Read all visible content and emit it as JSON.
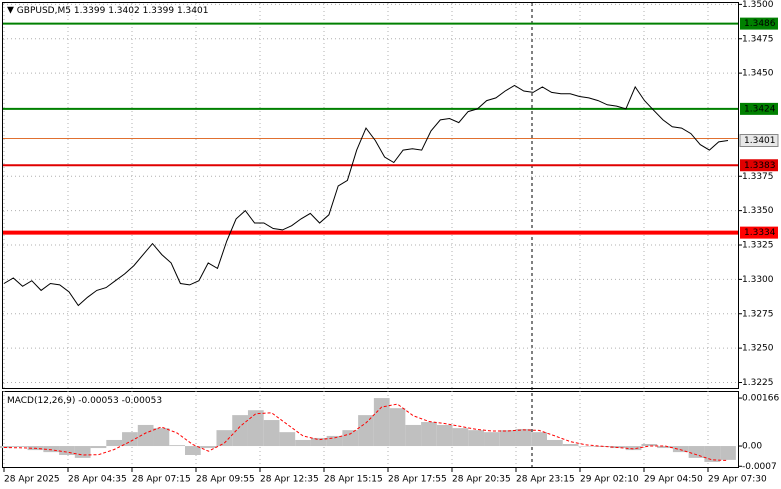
{
  "chart_data": {
    "type": "line",
    "title": "GBPUSD,M5",
    "ohlc": [
      1.3399,
      1.3402,
      1.3399,
      1.3401
    ],
    "color": "#000000",
    "values": [
      1.3297,
      1.3301,
      1.3295,
      1.3299,
      1.3292,
      1.3297,
      1.3296,
      1.3291,
      1.3281,
      1.3287,
      1.3292,
      1.3294,
      1.3299,
      1.3304,
      1.331,
      1.3318,
      1.3326,
      1.3318,
      1.3312,
      1.3297,
      1.3296,
      1.3299,
      1.3312,
      1.3308,
      1.3328,
      1.3344,
      1.335,
      1.3341,
      1.3341,
      1.3337,
      1.3336,
      1.3339,
      1.3344,
      1.3348,
      1.3341,
      1.3347,
      1.3368,
      1.3372,
      1.3394,
      1.341,
      1.3401,
      1.3389,
      1.3385,
      1.3394,
      1.3395,
      1.3394,
      1.3408,
      1.3416,
      1.3417,
      1.3414,
      1.3422,
      1.3424,
      1.343,
      1.3432,
      1.3437,
      1.3441,
      1.3437,
      1.3436,
      1.344,
      1.3436,
      1.3435,
      1.3435,
      1.3433,
      1.3432,
      1.343,
      1.3427,
      1.3426,
      1.3424,
      1.344,
      1.343,
      1.3423,
      1.3416,
      1.3411,
      1.341,
      1.3406,
      1.3398,
      1.3394,
      1.34,
      1.3401
    ],
    "ylim": [
      1.3221,
      1.3501
    ],
    "yticks": [
      {
        "value": 1.35,
        "label": "1.3500"
      },
      1.3475,
      {
        "value": 1.345,
        "label": "1.3450"
      },
      1.3375,
      {
        "value": 1.335,
        "label": "1.3350"
      },
      1.3325,
      {
        "value": 1.33,
        "label": "1.3300"
      },
      1.3275,
      {
        "value": 1.325,
        "label": "1.3250"
      },
      1.3225
    ],
    "grid": true,
    "levels": [
      {
        "value": 1.3486,
        "color": "#008000",
        "width": 2
      },
      {
        "value": 1.3424,
        "color": "#008000",
        "width": 2
      },
      {
        "value": 1.3383,
        "color": "#e00000",
        "width": 2
      },
      {
        "value": 1.3334,
        "color": "#ff0000",
        "width": 4
      }
    ],
    "last_price": 1.3401,
    "last_price_color": "#e07030",
    "x_labels": [
      "28 Apr 2025",
      "28 Apr 04:35",
      "28 Apr 07:15",
      "28 Apr 09:55",
      "28 Apr 12:35",
      "28 Apr 15:15",
      "28 Apr 17:55",
      "28 Apr 20:35",
      "28 Apr 23:15",
      "29 Apr 02:10",
      "29 Apr 04:50",
      "29 Apr 07:30"
    ],
    "macd": {
      "name": "MACD(12,26,9)",
      "current": [
        -0.00053,
        -0.00053
      ],
      "ylim": [
        -0.00076,
        0.00187
      ],
      "yticks": [
        0.00166,
        {
          "value": 0,
          "label": "0.00"
        },
        -0.0007
      ],
      "histogram_color": "#c0c0c0",
      "signal_color": "#ff0000",
      "histogram": [
        -7e-05,
        -3e-05,
        -0.00014,
        -0.00021,
        -0.00031,
        -0.00041,
        -7e-05,
        0.00021,
        0.00048,
        0.00073,
        0.00062,
        3e-05,
        -0.00031,
        -7e-05,
        0.00055,
        0.00107,
        0.00124,
        0.0009,
        0.00048,
        0.00021,
        0.00028,
        0.00035,
        0.00055,
        0.00107,
        0.00166,
        0.00131,
        0.00073,
        0.00083,
        0.00073,
        0.00062,
        0.00055,
        0.00048,
        0.00055,
        0.00059,
        0.00048,
        0.00021,
        7e-05,
        0,
        -3e-05,
        -7e-05,
        -0.00014,
        7e-05,
        -7e-05,
        -0.00021,
        -0.00041,
        -0.00055,
        -0.00048
      ],
      "signal": [
        -5e-05,
        -6e-05,
        -8e-05,
        -0.00013,
        -0.00021,
        -0.00031,
        -0.0003,
        -0.00012,
        0.00015,
        0.00045,
        0.00066,
        0.00045,
        5e-05,
        -0.00018,
        0.0001,
        0.00068,
        0.00112,
        0.00115,
        0.00075,
        0.00035,
        0.00022,
        0.00028,
        0.00042,
        0.0008,
        0.00135,
        0.00145,
        0.00105,
        0.00085,
        0.00078,
        0.00068,
        0.00058,
        0.00052,
        0.00052,
        0.00056,
        0.00054,
        0.00035,
        0.00015,
        4e-05,
        -1e-05,
        -5e-05,
        -0.0001,
        0,
        0,
        -0.00013,
        -0.0003,
        -0.00048,
        -0.0005
      ]
    }
  }
}
